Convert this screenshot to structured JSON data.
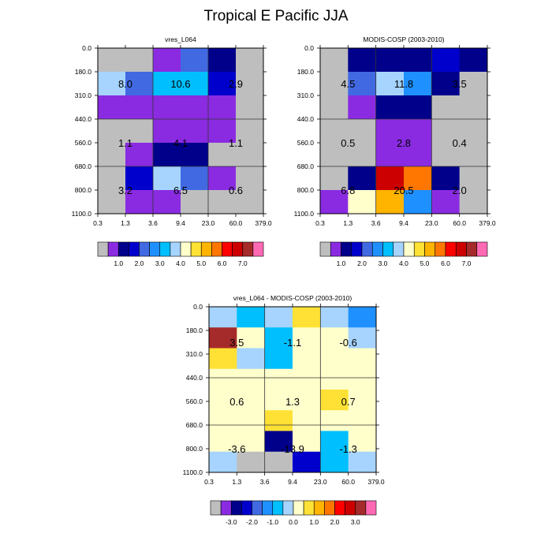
{
  "title": "Tropical E Pacific JJA",
  "colors": {
    "palette_abs": [
      "#bebebe",
      "#8a2be2",
      "#00008b",
      "#0000cd",
      "#4169e1",
      "#1e90ff",
      "#00bfff",
      "#a6d4ff",
      "#ffffcc",
      "#ffe135",
      "#ffb400",
      "#ff7700",
      "#ff0000",
      "#cc0000",
      "#a52a2a",
      "#ff69b4"
    ],
    "palette_diff": [
      "#bebebe",
      "#8a2be2",
      "#00008b",
      "#0000cd",
      "#4169e1",
      "#1e90ff",
      "#00bfff",
      "#a6d4ff",
      "#ffffcc",
      "#ffe135",
      "#ffb400",
      "#ff7700",
      "#ff0000",
      "#cc0000",
      "#a52a2a",
      "#ff69b4"
    ]
  },
  "chart_data": [
    {
      "type": "heatmap",
      "title": "vres_L064",
      "x_tick_labels": [
        "0.3",
        "1.3",
        "3.6",
        "9.4",
        "23.0",
        "60.0",
        "379.0"
      ],
      "y_tick_labels": [
        "0.0",
        "180.0",
        "310.0",
        "440.0",
        "560.0",
        "680.0",
        "800.0",
        "1100.0"
      ],
      "grid": [
        [
          0,
          0,
          1,
          4,
          2,
          0
        ],
        [
          7,
          4,
          6,
          6,
          3,
          0
        ],
        [
          1,
          1,
          1,
          1,
          1,
          0
        ],
        [
          0,
          0,
          1,
          1,
          1,
          0
        ],
        [
          0,
          1,
          2,
          2,
          0,
          0
        ],
        [
          0,
          3,
          7,
          4,
          1,
          0
        ],
        [
          0,
          1,
          1,
          0,
          0,
          0
        ]
      ],
      "region_labels": [
        {
          "text": "8.0",
          "col": 0,
          "row": 0
        },
        {
          "text": "10.6",
          "col": 1,
          "row": 0
        },
        {
          "text": "2.9",
          "col": 2,
          "row": 0
        },
        {
          "text": "1.1",
          "col": 0,
          "row": 1
        },
        {
          "text": "4.1",
          "col": 1,
          "row": 1
        },
        {
          "text": "1.1",
          "col": 2,
          "row": 1
        },
        {
          "text": "3.2",
          "col": 0,
          "row": 2
        },
        {
          "text": "6.5",
          "col": 1,
          "row": 2
        },
        {
          "text": "0.6",
          "col": 2,
          "row": 2
        }
      ],
      "colorbar_labels": [
        "1.0",
        "2.0",
        "3.0",
        "4.0",
        "5.0",
        "6.0",
        "7.0"
      ],
      "colorbar_palette": "abs"
    },
    {
      "type": "heatmap",
      "title": "MODIS-COSP (2003-2010)",
      "x_tick_labels": [
        "0.3",
        "1.3",
        "3.6",
        "9.4",
        "23.0",
        "60.0",
        "379.0"
      ],
      "y_tick_labels": [
        "0.0",
        "180.0",
        "310.0",
        "440.0",
        "560.0",
        "680.0",
        "800.0",
        "1100.0"
      ],
      "grid": [
        [
          0,
          2,
          2,
          2,
          3,
          2
        ],
        [
          0,
          4,
          7,
          5,
          2,
          0
        ],
        [
          0,
          1,
          2,
          2,
          0,
          0
        ],
        [
          0,
          0,
          1,
          1,
          0,
          0
        ],
        [
          0,
          0,
          1,
          1,
          0,
          0
        ],
        [
          0,
          2,
          13,
          11,
          2,
          0
        ],
        [
          1,
          8,
          10,
          5,
          1,
          0
        ]
      ],
      "region_labels": [
        {
          "text": "4.5",
          "col": 0,
          "row": 0
        },
        {
          "text": "11.8",
          "col": 1,
          "row": 0
        },
        {
          "text": "3.5",
          "col": 2,
          "row": 0
        },
        {
          "text": "0.5",
          "col": 0,
          "row": 1
        },
        {
          "text": "2.8",
          "col": 1,
          "row": 1
        },
        {
          "text": "0.4",
          "col": 2,
          "row": 1
        },
        {
          "text": "6.8",
          "col": 0,
          "row": 2
        },
        {
          "text": "20.5",
          "col": 1,
          "row": 2
        },
        {
          "text": "2.0",
          "col": 2,
          "row": 2
        }
      ],
      "colorbar_labels": [
        "1.0",
        "2.0",
        "3.0",
        "4.0",
        "5.0",
        "6.0",
        "7.0"
      ],
      "colorbar_palette": "abs"
    },
    {
      "type": "heatmap",
      "title": "vres_L064 - MODIS-COSP (2003-2010)",
      "x_tick_labels": [
        "0.3",
        "1.3",
        "3.6",
        "9.4",
        "23.0",
        "60.0",
        "379.0"
      ],
      "y_tick_labels": [
        "0.0",
        "180.0",
        "310.0",
        "440.0",
        "560.0",
        "680.0",
        "800.0",
        "1100.0"
      ],
      "grid": [
        [
          7,
          6,
          7,
          9,
          7,
          5
        ],
        [
          14,
          8,
          6,
          8,
          8,
          7
        ],
        [
          9,
          7,
          6,
          8,
          8,
          8
        ],
        [
          8,
          8,
          8,
          8,
          8,
          8
        ],
        [
          8,
          8,
          8,
          8,
          9,
          8
        ],
        [
          8,
          8,
          9,
          8,
          8,
          8
        ],
        [
          8,
          8,
          2,
          8,
          6,
          8
        ],
        [
          7,
          0,
          0,
          3,
          6,
          7
        ]
      ],
      "row_spans": [
        1,
        1,
        1,
        1,
        1,
        1,
        1,
        1
      ],
      "region_labels": [
        {
          "text": "3.5",
          "col": 0,
          "row": 0
        },
        {
          "text": "-1.1",
          "col": 1,
          "row": 0
        },
        {
          "text": "-0.6",
          "col": 2,
          "row": 0
        },
        {
          "text": "0.6",
          "col": 0,
          "row": 1
        },
        {
          "text": "1.3",
          "col": 1,
          "row": 1
        },
        {
          "text": "0.7",
          "col": 2,
          "row": 1
        },
        {
          "text": "-3.6",
          "col": 0,
          "row": 2
        },
        {
          "text": "-13.9",
          "col": 1,
          "row": 2
        },
        {
          "text": "-1.3",
          "col": 2,
          "row": 2
        }
      ],
      "colorbar_labels": [
        "-3.0",
        "-2.0",
        "-1.0",
        "0.0",
        "1.0",
        "2.0",
        "3.0"
      ],
      "colorbar_palette": "diff"
    }
  ]
}
